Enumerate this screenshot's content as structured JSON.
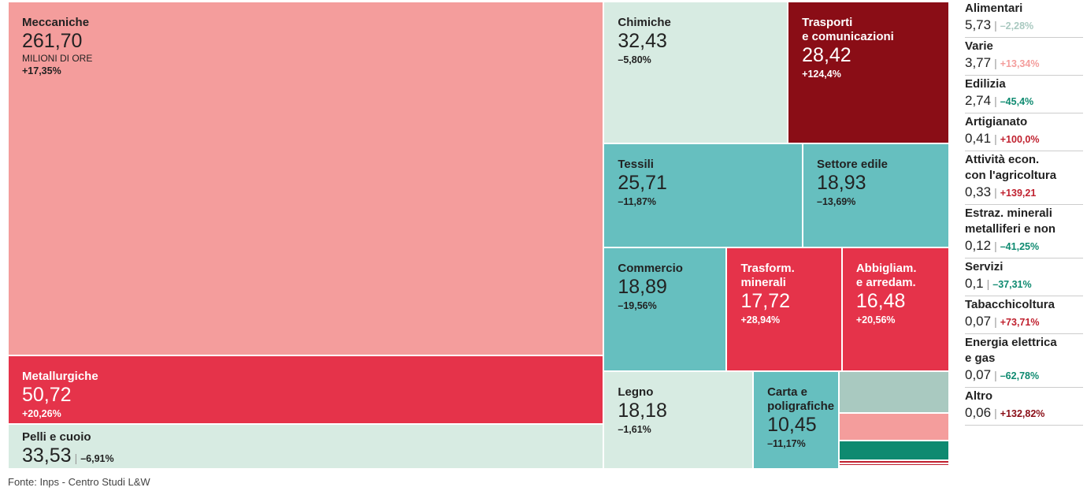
{
  "chart_data": {
    "type": "treemap",
    "unit_label": "MILIONI DI ORE",
    "source": "Fonte: Inps - Centro Studi L&W",
    "categories": [
      "Meccaniche",
      "Metallurgiche",
      "Pelli e cuoio",
      "Chimiche",
      "Trasporti\ne comunicazioni",
      "Tessili",
      "Settore edile",
      "Commercio",
      "Trasform.\nminerali",
      "Abbigliam.\ne arredam.",
      "Legno",
      "Carta e poligrafiche",
      "Alimentari",
      "Varie",
      "Edilizia",
      "Artigianato",
      "Attività econ.\ncon l'agricoltura",
      "Estraz. minerali\nmetalliferi e non",
      "Servizi",
      "Tabacchicoltura",
      "Energia elettrica\ne gas",
      "Altro"
    ],
    "values": [
      261.7,
      50.72,
      33.53,
      32.43,
      28.42,
      25.71,
      18.93,
      18.89,
      17.72,
      16.48,
      18.18,
      10.45,
      5.73,
      3.77,
      2.74,
      0.41,
      0.33,
      0.12,
      0.1,
      0.07,
      0.07,
      0.06
    ],
    "value_labels": [
      "261,70",
      "50,72",
      "33,53",
      "32,43",
      "28,42",
      "25,71",
      "18,93",
      "18,89",
      "17,72",
      "16,48",
      "18,18",
      "10,45",
      "5,73",
      "3,77",
      "2,74",
      "0,41",
      "0,33",
      "0,12",
      "0,1",
      "0,07",
      "0,07",
      "0,06"
    ],
    "changes": [
      "+17,35%",
      "+20,26%",
      "–6,91%",
      "–5,80%",
      "+124,4%",
      "–11,87%",
      "–13,69%",
      "–19,56%",
      "+28,94%",
      "+20,56%",
      "–1,61%",
      "–11,17%",
      "–2,28%",
      "+13,34%",
      "–45,4%",
      "+100,0%",
      "+139,21",
      "–41,25%",
      "–37,31%",
      "+73,71%",
      "–62,78%",
      "+132,82%"
    ],
    "colors": [
      "#f49d9c",
      "#e5334a",
      "#d7ebe2",
      "#d7ebe2",
      "#8a0d16",
      "#66bfbf",
      "#66bfbf",
      "#66bfbf",
      "#e5334a",
      "#e5334a",
      "#d7ebe2",
      "#66bfbf",
      "#a9c9c0",
      "#f49d9c",
      "#0e8a70",
      "#c0212f",
      "#c0212f",
      "#0e8a70",
      "#0e8a70",
      "#c0212f",
      "#0e8a70",
      "#8a0d16"
    ]
  }
}
